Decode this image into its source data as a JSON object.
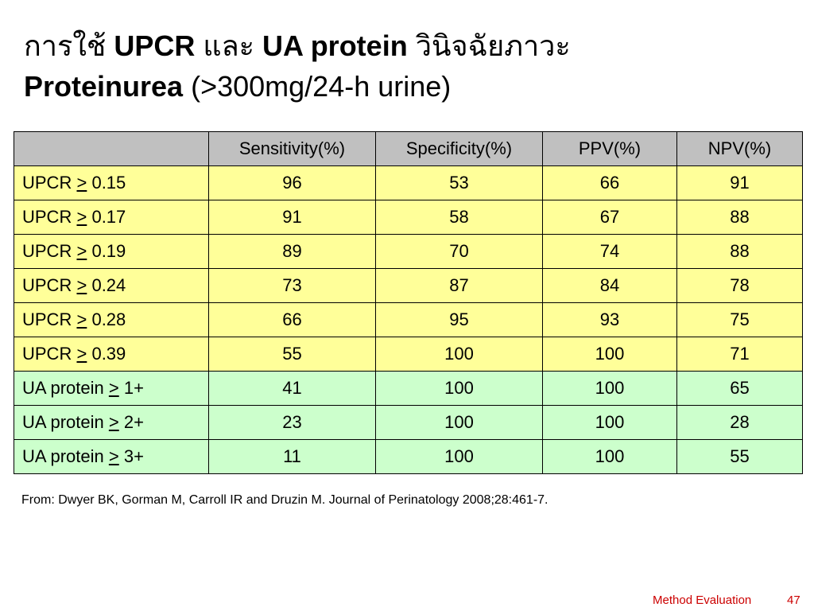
{
  "title": {
    "lines": [
      [
        {
          "text": "การใช้",
          "bold": false
        },
        {
          "text": "UPCR",
          "bold": true
        },
        {
          "text": "และ",
          "bold": false
        },
        {
          "text": "UA protein",
          "bold": true
        },
        {
          "text": "วินิจฉัยภาวะ",
          "bold": false
        }
      ],
      [
        {
          "text": "Proteinurea",
          "bold": true
        },
        {
          "text": "(>300mg/24-h urine)",
          "bold": false
        }
      ]
    ]
  },
  "table": {
    "columns": [
      "Sensitivity(%)",
      "Specificity(%)",
      "PPV(%)",
      "NPV(%)"
    ],
    "header_color": "#c0c0c0",
    "rows": [
      {
        "label": {
          "name": "UPCR",
          "op": ">",
          "threshold": "0.15"
        },
        "values": [
          96,
          53,
          66,
          91
        ],
        "color": "#ffff99"
      },
      {
        "label": {
          "name": "UPCR",
          "op": ">",
          "threshold": "0.17"
        },
        "values": [
          91,
          58,
          67,
          88
        ],
        "color": "#ffff99"
      },
      {
        "label": {
          "name": "UPCR",
          "op": ">",
          "threshold": "0.19"
        },
        "values": [
          89,
          70,
          74,
          88
        ],
        "color": "#ffff99"
      },
      {
        "label": {
          "name": "UPCR",
          "op": ">",
          "threshold": "0.24"
        },
        "values": [
          73,
          87,
          84,
          78
        ],
        "color": "#ffff99"
      },
      {
        "label": {
          "name": "UPCR",
          "op": ">",
          "threshold": "0.28"
        },
        "values": [
          66,
          95,
          93,
          75
        ],
        "color": "#ffff99"
      },
      {
        "label": {
          "name": "UPCR",
          "op": ">",
          "threshold": "0.39"
        },
        "values": [
          55,
          100,
          100,
          71
        ],
        "color": "#ffff99"
      },
      {
        "label": {
          "name": "UA protein",
          "op": ">",
          "threshold": "1+"
        },
        "values": [
          41,
          100,
          100,
          65
        ],
        "color": "#ccffcc"
      },
      {
        "label": {
          "name": "UA protein",
          "op": ">",
          "threshold": "2+"
        },
        "values": [
          23,
          100,
          100,
          28
        ],
        "color": "#ccffcc"
      },
      {
        "label": {
          "name": "UA protein",
          "op": ">",
          "threshold": "3+"
        },
        "values": [
          11,
          100,
          100,
          55
        ],
        "color": "#ccffcc"
      }
    ]
  },
  "footnote": "From: Dwyer BK, Gorman M, Carroll IR and Druzin M. Journal of Perinatology 2008;28:461-7.",
  "footer": {
    "section": "Method Evaluation",
    "page": "47"
  }
}
